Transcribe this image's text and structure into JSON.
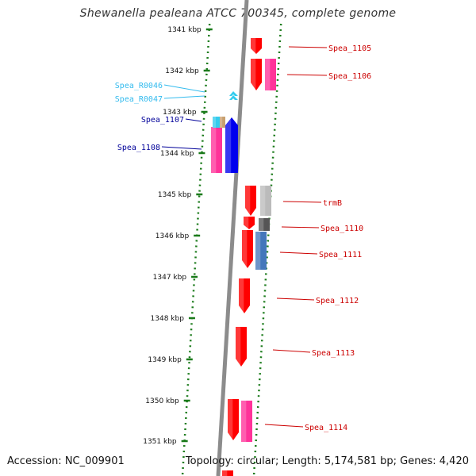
{
  "title": "Shewanella pealeana ATCC 700345, complete genome",
  "footer": {
    "accession": "Accession: NC_009901",
    "summary": "Topology: circular; Length: 5,174,581 bp; Genes: 4,420"
  },
  "colors": {
    "backbone": "#8c8c8c",
    "ticks": "#1a7a1a",
    "forward_gene": "#ff0000",
    "reverse_gene": "#0000ee",
    "pseudo": "#ff3399",
    "rna": "#33ccee",
    "label_red": "#cc0000",
    "label_blue": "#000099",
    "label_cyan": "#33bbee"
  },
  "scale_labels": [
    "1341 kbp",
    "1342 kbp",
    "1343 kbp",
    "1344 kbp",
    "1345 kbp",
    "1346 kbp",
    "1347 kbp",
    "1348 kbp",
    "1349 kbp",
    "1350 kbp",
    "1351 kbp"
  ],
  "gene_labels": {
    "right": [
      "Spea_1105",
      "Spea_1106",
      "trmB",
      "Spea_1110",
      "Spea_1111",
      "Spea_1112",
      "Spea_1113",
      "Spea_1114"
    ],
    "left": [
      "Spea_R0046",
      "Spea_R0047",
      "Spea_1107",
      "Spea_1108"
    ]
  }
}
